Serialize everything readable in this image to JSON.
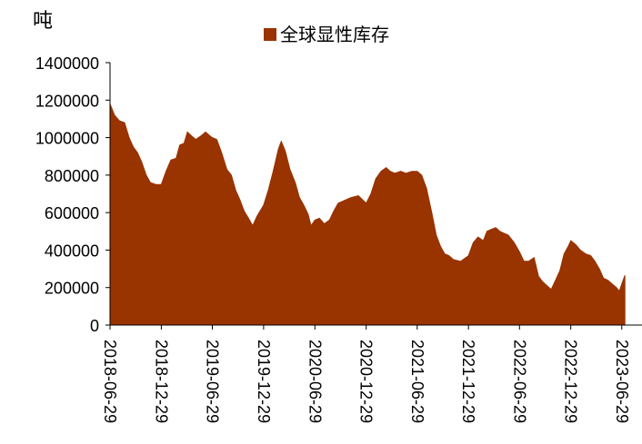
{
  "chart_data": {
    "type": "area",
    "unit_label": "吨",
    "legend_position": "top",
    "grid": false,
    "color": "#993300",
    "ylim": [
      0,
      1400000
    ],
    "y_ticks": [
      "0",
      "200000",
      "400000",
      "600000",
      "800000",
      "1000000",
      "1200000",
      "1400000"
    ],
    "x_tick_labels": [
      "2018-06-29",
      "2018-12-29",
      "2019-06-29",
      "2019-12-29",
      "2020-06-29",
      "2020-12-29",
      "2021-06-29",
      "2021-12-29",
      "2022-06-29",
      "2022-12-29",
      "2023-06-29"
    ],
    "series": [
      {
        "name": "全球显性库存",
        "points": [
          [
            "2018-06-29",
            1180000
          ],
          [
            "2018-07-15",
            1120000
          ],
          [
            "2018-08-01",
            1090000
          ],
          [
            "2018-08-20",
            1080000
          ],
          [
            "2018-09-05",
            1000000
          ],
          [
            "2018-09-20",
            950000
          ],
          [
            "2018-10-05",
            920000
          ],
          [
            "2018-10-20",
            870000
          ],
          [
            "2018-11-05",
            800000
          ],
          [
            "2018-11-20",
            760000
          ],
          [
            "2018-12-10",
            750000
          ],
          [
            "2018-12-29",
            750000
          ],
          [
            "2019-01-15",
            820000
          ],
          [
            "2019-02-01",
            880000
          ],
          [
            "2019-02-20",
            890000
          ],
          [
            "2019-03-05",
            960000
          ],
          [
            "2019-03-20",
            970000
          ],
          [
            "2019-04-01",
            1030000
          ],
          [
            "2019-04-15",
            1010000
          ],
          [
            "2019-05-01",
            990000
          ],
          [
            "2019-05-20",
            1010000
          ],
          [
            "2019-06-05",
            1030000
          ],
          [
            "2019-06-20",
            1010000
          ],
          [
            "2019-06-29",
            1000000
          ],
          [
            "2019-07-15",
            990000
          ],
          [
            "2019-08-01",
            920000
          ],
          [
            "2019-08-20",
            830000
          ],
          [
            "2019-09-05",
            800000
          ],
          [
            "2019-09-20",
            720000
          ],
          [
            "2019-10-05",
            670000
          ],
          [
            "2019-10-20",
            610000
          ],
          [
            "2019-11-05",
            570000
          ],
          [
            "2019-11-20",
            530000
          ],
          [
            "2019-12-05",
            580000
          ],
          [
            "2019-12-29",
            640000
          ],
          [
            "2020-01-15",
            720000
          ],
          [
            "2020-02-01",
            820000
          ],
          [
            "2020-02-20",
            940000
          ],
          [
            "2020-03-01",
            980000
          ],
          [
            "2020-03-15",
            930000
          ],
          [
            "2020-04-01",
            830000
          ],
          [
            "2020-04-20",
            760000
          ],
          [
            "2020-05-05",
            680000
          ],
          [
            "2020-05-20",
            640000
          ],
          [
            "2020-06-05",
            590000
          ],
          [
            "2020-06-15",
            530000
          ],
          [
            "2020-06-29",
            560000
          ],
          [
            "2020-07-15",
            570000
          ],
          [
            "2020-08-01",
            540000
          ],
          [
            "2020-08-20",
            560000
          ],
          [
            "2020-09-05",
            610000
          ],
          [
            "2020-09-20",
            650000
          ],
          [
            "2020-10-05",
            660000
          ],
          [
            "2020-10-20",
            670000
          ],
          [
            "2020-11-05",
            680000
          ],
          [
            "2020-12-01",
            690000
          ],
          [
            "2020-12-29",
            650000
          ],
          [
            "2021-01-15",
            700000
          ],
          [
            "2021-02-01",
            780000
          ],
          [
            "2021-02-20",
            820000
          ],
          [
            "2021-03-10",
            840000
          ],
          [
            "2021-03-25",
            820000
          ],
          [
            "2021-04-10",
            810000
          ],
          [
            "2021-05-01",
            820000
          ],
          [
            "2021-05-20",
            810000
          ],
          [
            "2021-06-10",
            820000
          ],
          [
            "2021-06-29",
            820000
          ],
          [
            "2021-07-15",
            800000
          ],
          [
            "2021-08-01",
            730000
          ],
          [
            "2021-08-20",
            600000
          ],
          [
            "2021-09-05",
            480000
          ],
          [
            "2021-09-20",
            420000
          ],
          [
            "2021-10-05",
            380000
          ],
          [
            "2021-10-20",
            370000
          ],
          [
            "2021-11-05",
            350000
          ],
          [
            "2021-12-01",
            340000
          ],
          [
            "2021-12-29",
            370000
          ],
          [
            "2022-01-15",
            440000
          ],
          [
            "2022-02-01",
            470000
          ],
          [
            "2022-02-20",
            450000
          ],
          [
            "2022-03-05",
            500000
          ],
          [
            "2022-03-20",
            510000
          ],
          [
            "2022-04-05",
            520000
          ],
          [
            "2022-04-20",
            500000
          ],
          [
            "2022-05-05",
            490000
          ],
          [
            "2022-05-20",
            480000
          ],
          [
            "2022-06-10",
            440000
          ],
          [
            "2022-06-29",
            390000
          ],
          [
            "2022-07-15",
            340000
          ],
          [
            "2022-08-01",
            340000
          ],
          [
            "2022-08-20",
            360000
          ],
          [
            "2022-09-05",
            260000
          ],
          [
            "2022-09-20",
            230000
          ],
          [
            "2022-10-05",
            210000
          ],
          [
            "2022-10-20",
            190000
          ],
          [
            "2022-11-05",
            240000
          ],
          [
            "2022-11-20",
            290000
          ],
          [
            "2022-12-05",
            380000
          ],
          [
            "2022-12-20",
            420000
          ],
          [
            "2022-12-29",
            450000
          ],
          [
            "2023-01-15",
            430000
          ],
          [
            "2023-02-01",
            400000
          ],
          [
            "2023-02-20",
            380000
          ],
          [
            "2023-03-10",
            370000
          ],
          [
            "2023-03-25",
            340000
          ],
          [
            "2023-04-10",
            300000
          ],
          [
            "2023-04-25",
            250000
          ],
          [
            "2023-05-10",
            240000
          ],
          [
            "2023-05-25",
            220000
          ],
          [
            "2023-06-10",
            200000
          ],
          [
            "2023-06-20",
            180000
          ],
          [
            "2023-06-29",
            220000
          ],
          [
            "2023-07-10",
            265000
          ]
        ]
      }
    ]
  }
}
